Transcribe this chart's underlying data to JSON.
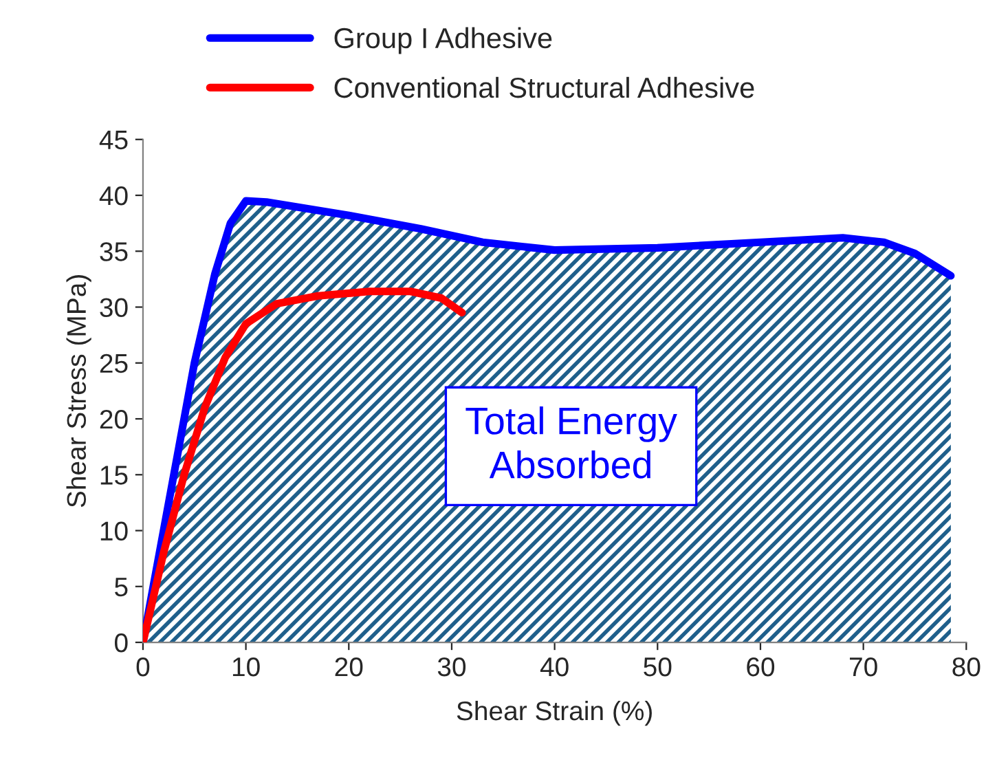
{
  "chart_data": {
    "type": "line",
    "xlabel": "Shear Strain (%)",
    "ylabel": "Shear Stress (MPa)",
    "xlim": [
      0,
      80
    ],
    "xticks": [
      0,
      10,
      20,
      30,
      40,
      50,
      60,
      70,
      80
    ],
    "ylim": [
      0,
      45
    ],
    "yticks": [
      0,
      5,
      10,
      15,
      20,
      25,
      30,
      35,
      40,
      45
    ],
    "grid": false,
    "legend": "top left",
    "marker": "none",
    "line_style": "solid",
    "annotations": [
      "Total Energy\nAbsorbed"
    ],
    "series": [
      {
        "name": "Group I Adhesive",
        "type": "area",
        "color": "#0000ff",
        "x": [
          0,
          1,
          3,
          5,
          7,
          8.5,
          10,
          12,
          20,
          27,
          33,
          40,
          50,
          60,
          68,
          72,
          75,
          78.5
        ],
        "values": [
          0,
          5,
          15,
          25,
          33,
          37.5,
          39.5,
          39.4,
          38.2,
          37,
          35.8,
          35.1,
          35.3,
          35.8,
          36.2,
          35.8,
          34.8,
          32.8
        ]
      },
      {
        "name": "Conventional Structural Adhesive",
        "color": "#ff0000",
        "x": [
          0,
          2,
          4,
          6,
          8,
          10,
          13,
          17,
          22,
          26,
          29,
          31
        ],
        "values": [
          0,
          8,
          15,
          21,
          25.5,
          28.5,
          30.3,
          31,
          31.4,
          31.4,
          30.8,
          29.5
        ]
      }
    ]
  }
}
